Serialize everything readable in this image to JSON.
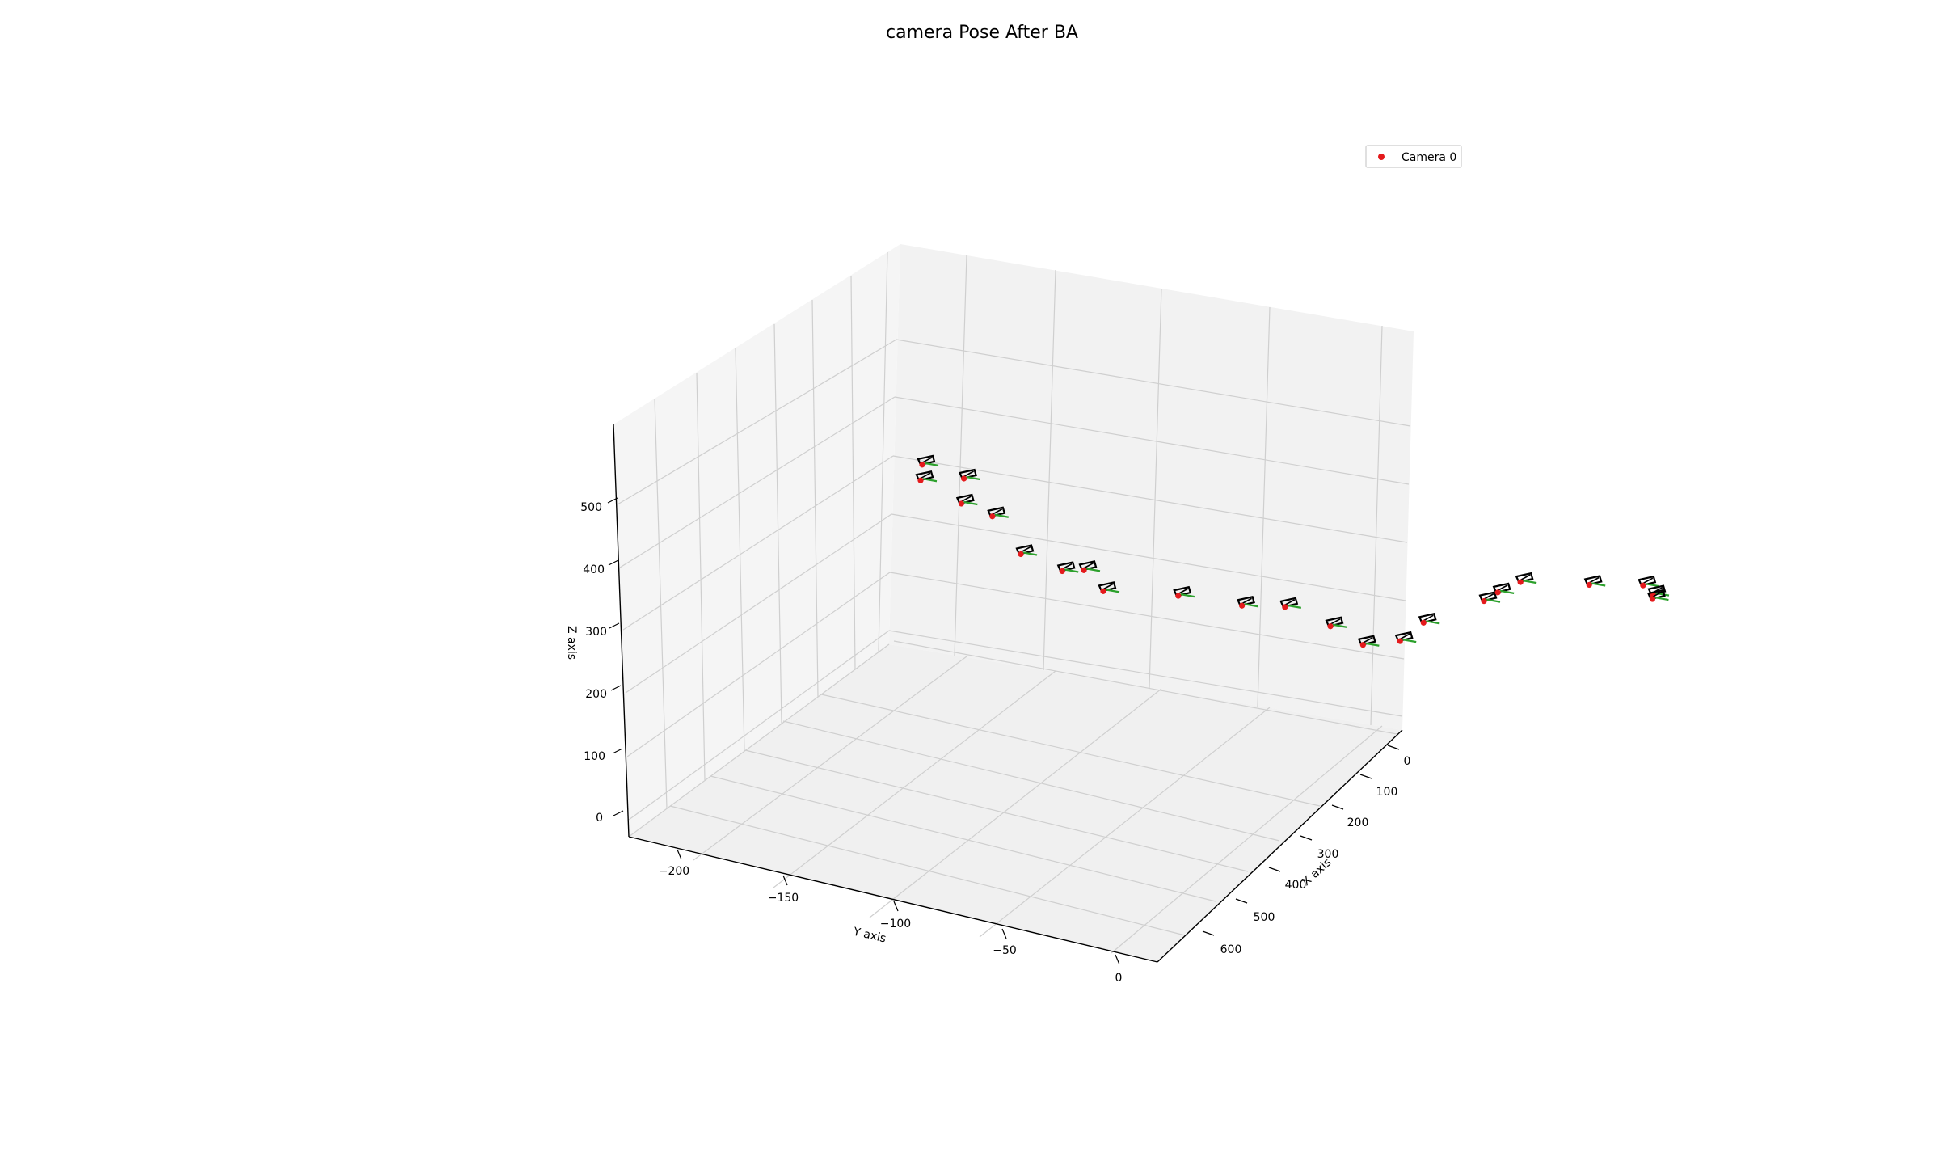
{
  "chart_data": {
    "type": "scatter3d",
    "title": "camera Pose After BA",
    "xlabel": "X axis",
    "ylabel": "Y axis",
    "zlabel": "Z axis",
    "x_ticks": [
      "0",
      "100",
      "200",
      "300",
      "400",
      "500",
      "600"
    ],
    "y_ticks": [
      "−200",
      "−150",
      "−100",
      "−50",
      "0"
    ],
    "z_ticks": [
      "0",
      "100",
      "200",
      "300",
      "400",
      "500"
    ],
    "grid": true,
    "legend": {
      "placement": "top-right",
      "entries": [
        "Camera 0"
      ]
    },
    "colors": {
      "camera_point": "#e41a1c",
      "camera_axis": "#2ca02c",
      "frustum": "#000000",
      "grid": "#d0d0d0",
      "pane": "#f2f2f2"
    },
    "series": [
      {
        "name": "Camera 0",
        "points": [
          {
            "x": 0,
            "y": -225,
            "z": 575
          },
          {
            "x": 0,
            "y": -225,
            "z": 550
          },
          {
            "x": 0,
            "y": -205,
            "z": 540
          },
          {
            "x": 0,
            "y": -205,
            "z": 500
          },
          {
            "x": 0,
            "y": -190,
            "z": 470
          },
          {
            "x": 0,
            "y": -175,
            "z": 400
          },
          {
            "x": 0,
            "y": -155,
            "z": 360
          },
          {
            "x": 0,
            "y": -145,
            "z": 355
          },
          {
            "x": 0,
            "y": -135,
            "z": 315
          },
          {
            "x": 0,
            "y": -100,
            "z": 285
          },
          {
            "x": 0,
            "y": -70,
            "z": 250
          },
          {
            "x": 0,
            "y": -50,
            "z": 235
          },
          {
            "x": 0,
            "y": -28,
            "z": 190
          },
          {
            "x": 0,
            "y": -12,
            "z": 150
          },
          {
            "x": 0,
            "y": 5,
            "z": 145
          },
          {
            "x": 0,
            "y": 15,
            "z": 168
          },
          {
            "x": 0,
            "y": 42,
            "z": 185
          },
          {
            "x": 0,
            "y": 48,
            "z": 195
          },
          {
            "x": 0,
            "y": 58,
            "z": 205
          },
          {
            "x": 0,
            "y": 90,
            "z": 180
          },
          {
            "x": 0,
            "y": 115,
            "z": 163
          },
          {
            "x": 0,
            "y": 120,
            "z": 145
          },
          {
            "x": 0,
            "y": 120,
            "z": 138
          }
        ]
      }
    ]
  }
}
